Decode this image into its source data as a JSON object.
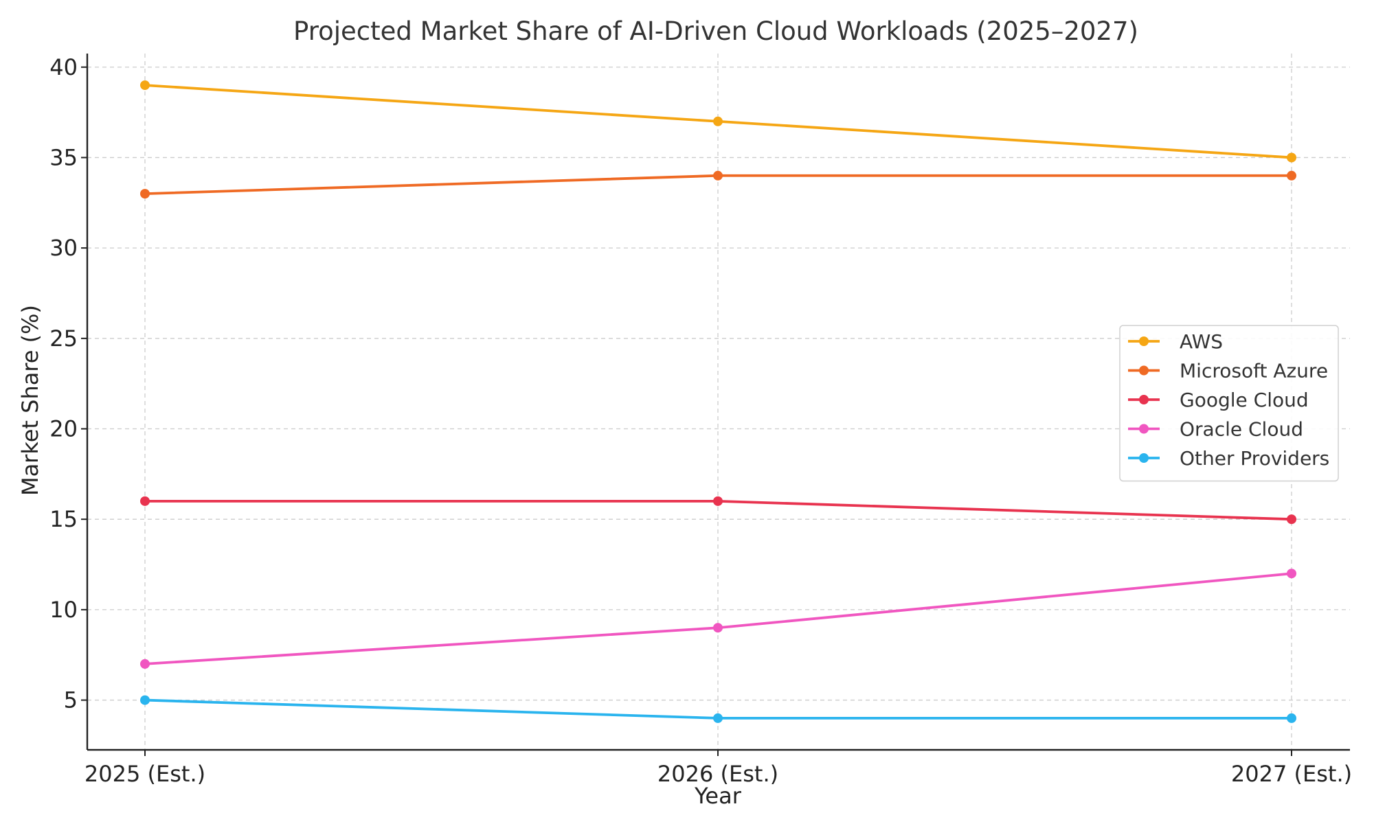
{
  "chart_data": {
    "type": "line",
    "title": "Projected Market Share of AI-Driven Cloud Workloads (2025–2027)",
    "xlabel": "Year",
    "ylabel": "Market Share (%)",
    "categories": [
      "2025 (Est.)",
      "2026 (Est.)",
      "2027 (Est.)"
    ],
    "ylim": [
      2.25,
      40.75
    ],
    "yticks": [
      5,
      10,
      15,
      20,
      25,
      30,
      35,
      40
    ],
    "grid": true,
    "legend_position": "right",
    "series": [
      {
        "name": "AWS",
        "values": [
          39,
          37,
          35
        ],
        "color": "#f5a614"
      },
      {
        "name": "Microsoft Azure",
        "values": [
          33,
          34,
          34
        ],
        "color": "#ef6a24"
      },
      {
        "name": "Google Cloud",
        "values": [
          16,
          16,
          15
        ],
        "color": "#e8334f"
      },
      {
        "name": "Oracle Cloud",
        "values": [
          7,
          9,
          12
        ],
        "color": "#f056c0"
      },
      {
        "name": "Other Providers",
        "values": [
          5,
          4,
          4
        ],
        "color": "#2ab4ee"
      }
    ]
  }
}
